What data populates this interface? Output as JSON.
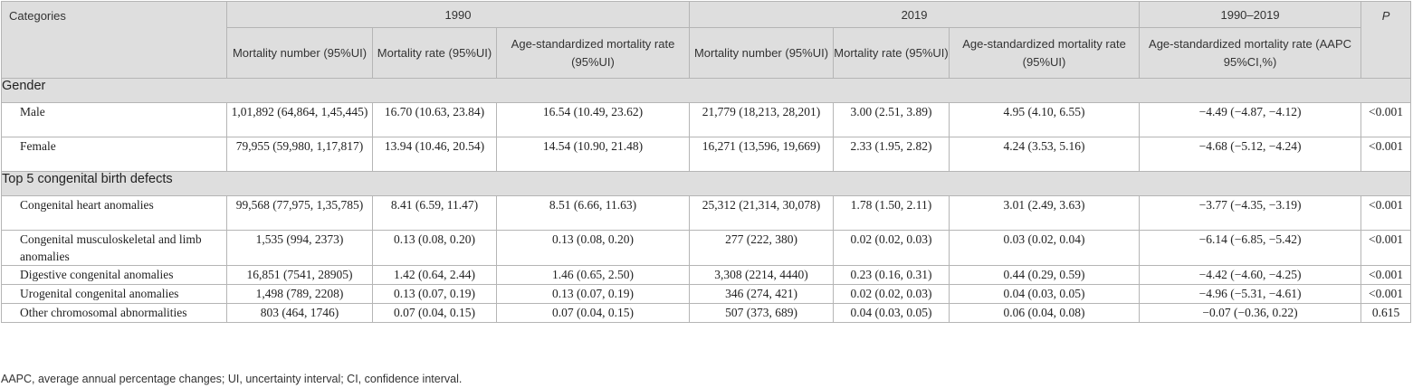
{
  "header": {
    "categories": "Categories",
    "groups": [
      "1990",
      "2019",
      "1990–2019"
    ],
    "p": "P",
    "sub": [
      "Mortality number (95%UI)",
      "Mortality rate (95%UI)",
      "Age-standardized mortality rate (95%UI)",
      "Mortality number (95%UI)",
      "Mortality rate (95%UI)",
      "Age-standardized mortality rate (95%UI)",
      "Age-standardized mortality rate (AAPC 95%CI,%)"
    ]
  },
  "sections": [
    {
      "title": "Gender",
      "rows": [
        [
          "Male",
          "1,01,892 (64,864, 1,45,445)",
          "16.70 (10.63, 23.84)",
          "16.54 (10.49, 23.62)",
          "21,779 (18,213, 28,201)",
          "3.00 (2.51, 3.89)",
          "4.95 (4.10, 6.55)",
          "−4.49 (−4.87, −4.12)",
          "<0.001"
        ],
        [
          "Female",
          "79,955 (59,980, 1,17,817)",
          "13.94 (10.46, 20.54)",
          "14.54 (10.90, 21.48)",
          "16,271 (13,596, 19,669)",
          "2.33 (1.95, 2.82)",
          "4.24 (3.53, 5.16)",
          "−4.68 (−5.12, −4.24)",
          "<0.001"
        ]
      ]
    },
    {
      "title": "Top 5 congenital birth defects",
      "rows": [
        [
          "Congenital heart anomalies",
          "99,568 (77,975, 1,35,785)",
          "8.41 (6.59, 11.47)",
          "8.51 (6.66, 11.63)",
          "25,312 (21,314, 30,078)",
          "1.78 (1.50, 2.11)",
          "3.01 (2.49, 3.63)",
          "−3.77 (−4.35, −3.19)",
          "<0.001"
        ],
        [
          "Congenital musculoskeletal and limb anomalies",
          "1,535 (994, 2373)",
          "0.13 (0.08, 0.20)",
          "0.13 (0.08, 0.20)",
          "277 (222, 380)",
          "0.02 (0.02, 0.03)",
          "0.03 (0.02, 0.04)",
          "−6.14 (−6.85, −5.42)",
          "<0.001"
        ],
        [
          "Digestive congenital anomalies",
          "16,851 (7541, 28905)",
          "1.42 (0.64, 2.44)",
          "1.46 (0.65, 2.50)",
          "3,308 (2214, 4440)",
          "0.23 (0.16, 0.31)",
          "0.44 (0.29, 0.59)",
          "−4.42 (−4.60, −4.25)",
          "<0.001"
        ],
        [
          "Urogenital congenital anomalies",
          "1,498 (789, 2208)",
          "0.13 (0.07, 0.19)",
          "0.13 (0.07, 0.19)",
          "346 (274, 421)",
          "0.02 (0.02, 0.03)",
          "0.04 (0.03, 0.05)",
          "−4.96 (−5.31, −4.61)",
          "<0.001"
        ],
        [
          "Other chromosomal abnormalities",
          "803 (464, 1746)",
          "0.07 (0.04, 0.15)",
          "0.07 (0.04, 0.15)",
          "507 (373, 689)",
          "0.04 (0.03, 0.05)",
          "0.06 (0.04, 0.08)",
          "−0.07 (−0.36, 0.22)",
          "0.615"
        ]
      ]
    }
  ],
  "footnote": "AAPC, average annual percentage changes; UI, uncertainty interval; CI, confidence interval."
}
